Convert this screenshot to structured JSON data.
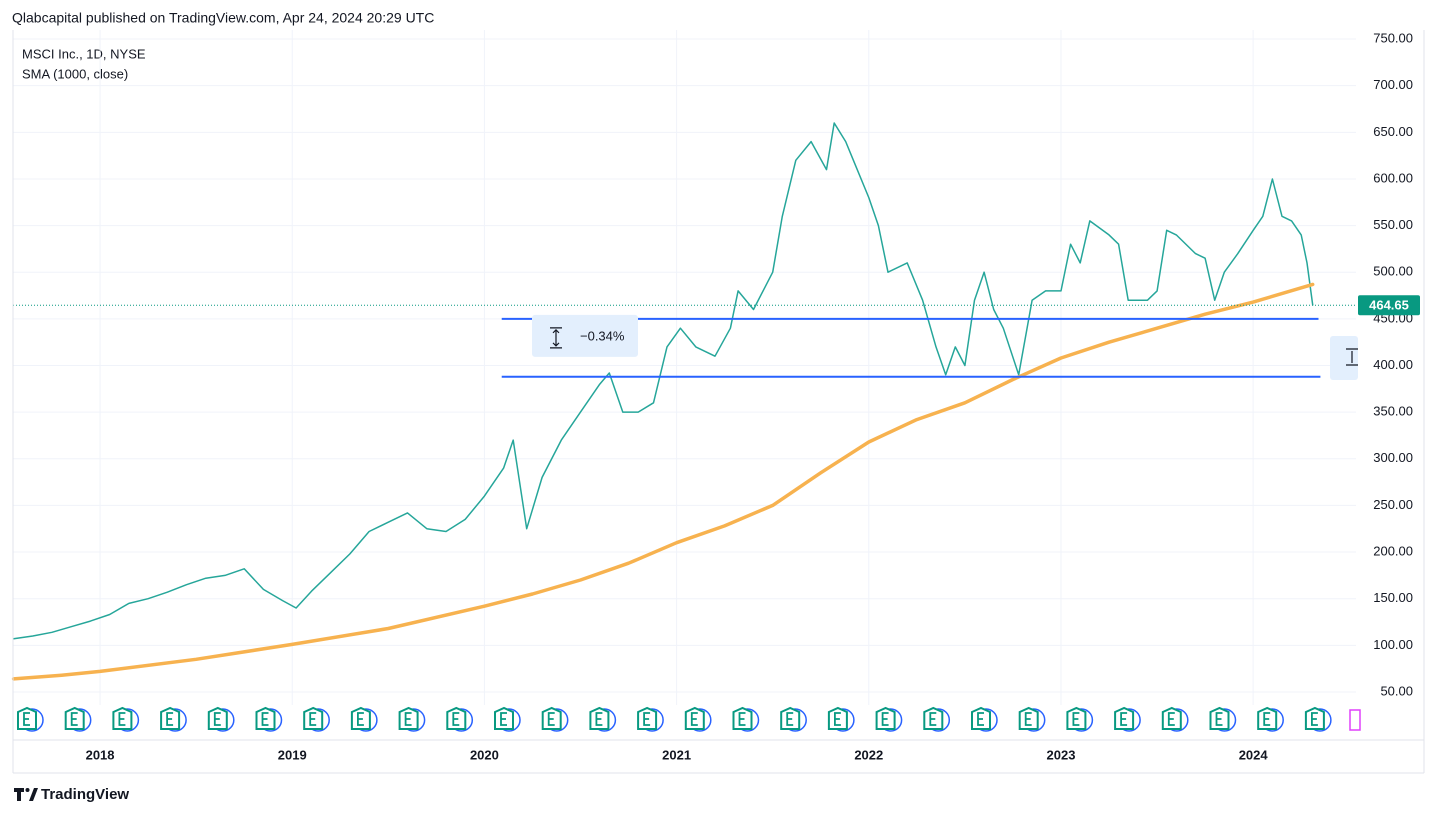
{
  "chart_data": {
    "type": "line",
    "header": "Qlabcapital published on TradingView.com, Apr 24, 2024 20:29 UTC",
    "title": "MSCI Inc., 1D, NYSE",
    "brand": "TradingView",
    "xlim": [
      2017.547,
      2024.889
    ],
    "ylim": [
      -1.5,
      759.7
    ],
    "xticks": [
      2018,
      2019,
      2020,
      2021,
      2022,
      2023,
      2024
    ],
    "yticks": [
      {
        "value": 50,
        "label": "50.00"
      },
      {
        "value": 100,
        "label": "100.00"
      },
      {
        "value": 150,
        "label": "150.00"
      },
      {
        "value": 200,
        "label": "200.00"
      },
      {
        "value": 250,
        "label": "250.00"
      },
      {
        "value": 300,
        "label": "300.00"
      },
      {
        "value": 350,
        "label": "350.00"
      },
      {
        "value": 400,
        "label": "400.00"
      },
      {
        "value": 450,
        "label": "450.00"
      },
      {
        "value": 500,
        "label": "500.00"
      },
      {
        "value": 550,
        "label": "550.00"
      },
      {
        "value": 600,
        "label": "600.00"
      },
      {
        "value": 650,
        "label": "650.00"
      },
      {
        "value": 700,
        "label": "700.00"
      },
      {
        "value": 750,
        "label": "750.00"
      }
    ],
    "grid": true,
    "series": [
      {
        "color": "#26a69a",
        "x": [
          2017.55,
          2017.65,
          2017.75,
          2017.85,
          2017.95,
          2018.05,
          2018.15,
          2018.25,
          2018.35,
          2018.45,
          2018.55,
          2018.65,
          2018.75,
          2018.85,
          2018.95,
          2019.02,
          2019.1,
          2019.2,
          2019.3,
          2019.4,
          2019.5,
          2019.6,
          2019.7,
          2019.8,
          2019.9,
          2020.0,
          2020.1,
          2020.15,
          2020.22,
          2020.3,
          2020.4,
          2020.5,
          2020.6,
          2020.65,
          2020.72,
          2020.8,
          2020.88,
          2020.95,
          2021.02,
          2021.1,
          2021.2,
          2021.28,
          2021.32,
          2021.4,
          2021.5,
          2021.55,
          2021.62,
          2021.7,
          2021.78,
          2021.82,
          2021.88,
          2021.92,
          2022.0,
          2022.05,
          2022.1,
          2022.2,
          2022.28,
          2022.35,
          2022.4,
          2022.45,
          2022.5,
          2022.55,
          2022.6,
          2022.65,
          2022.7,
          2022.78,
          2022.85,
          2022.92,
          2023.0,
          2023.05,
          2023.1,
          2023.15,
          2023.25,
          2023.3,
          2023.35,
          2023.45,
          2023.5,
          2023.55,
          2023.6,
          2023.7,
          2023.75,
          2023.8,
          2023.85,
          2023.92,
          2024.0,
          2024.05,
          2024.1,
          2024.15,
          2024.2,
          2024.25,
          2024.28,
          2024.31
        ],
        "values": [
          107,
          110,
          114,
          120,
          126,
          133,
          145,
          150,
          157,
          165,
          172,
          175,
          182,
          160,
          148,
          140,
          158,
          178,
          198,
          222,
          232,
          242,
          225,
          222,
          235,
          260,
          290,
          320,
          225,
          280,
          320,
          350,
          380,
          392,
          350,
          350,
          360,
          420,
          440,
          420,
          410,
          440,
          480,
          460,
          500,
          560,
          620,
          640,
          610,
          660,
          640,
          620,
          580,
          550,
          500,
          510,
          470,
          420,
          390,
          420,
          400,
          470,
          500,
          460,
          440,
          390,
          470,
          480,
          480,
          530,
          510,
          555,
          540,
          530,
          470,
          470,
          480,
          545,
          540,
          520,
          515,
          470,
          500,
          520,
          545,
          560,
          600,
          560,
          555,
          540,
          510,
          465
        ]
      },
      {
        "name": "SMA (1000, close)",
        "color": "#f7b24f",
        "x": [
          2017.55,
          2017.8,
          2018.0,
          2018.5,
          2019.0,
          2019.5,
          2020.0,
          2020.25,
          2020.5,
          2020.75,
          2021.0,
          2021.25,
          2021.5,
          2021.75,
          2022.0,
          2022.25,
          2022.5,
          2022.75,
          2023.0,
          2023.25,
          2023.5,
          2023.75,
          2024.0,
          2024.31
        ],
        "values": [
          64,
          68,
          72,
          85,
          101,
          118,
          142,
          155,
          170,
          188,
          210,
          228,
          250,
          285,
          318,
          342,
          360,
          385,
          408,
          425,
          440,
          455,
          468,
          487
        ]
      }
    ],
    "levels": [
      {
        "value": 450,
        "x": [
          2020.09,
          2024.34
        ]
      },
      {
        "value": 388,
        "x": [
          2020.09,
          2024.35
        ]
      }
    ],
    "measure": "−0.34%",
    "last_price": 464.65
  }
}
